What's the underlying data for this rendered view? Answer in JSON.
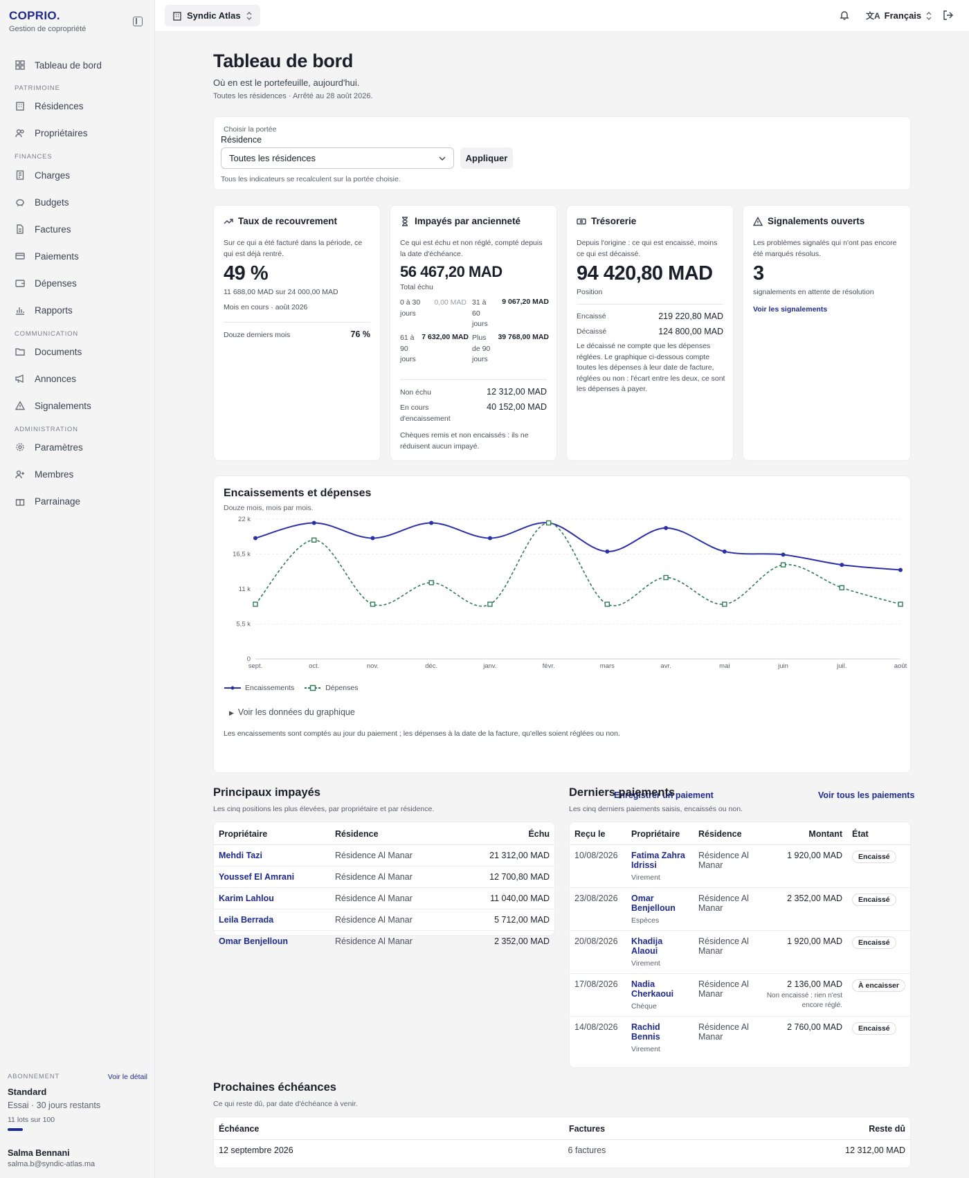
{
  "brand": {
    "logo": "COPRIO.",
    "subtitle": "Gestion de copropriété"
  },
  "sidebar": {
    "home": "Tableau de bord",
    "sections": [
      {
        "title": "PATRIMOINE",
        "items": [
          "Résidences",
          "Propriétaires"
        ]
      },
      {
        "title": "FINANCES",
        "items": [
          "Charges",
          "Budgets",
          "Factures",
          "Paiements",
          "Dépenses",
          "Rapports"
        ]
      },
      {
        "title": "COMMUNICATION",
        "items": [
          "Documents",
          "Annonces",
          "Signalements"
        ]
      },
      {
        "title": "ADMINISTRATION",
        "items": [
          "Paramètres",
          "Membres",
          "Parrainage"
        ]
      }
    ],
    "subscription": {
      "label": "ABONNEMENT",
      "link": "Voir le détail",
      "plan": "Standard",
      "trial": "Essai · 30 jours restants",
      "lots": "11 lots sur 100",
      "usage_fraction": 0.11
    },
    "user": {
      "name": "Salma Bennani",
      "email": "salma.b@syndic-atlas.ma"
    }
  },
  "topbar": {
    "org": "Syndic Atlas",
    "language": "Français"
  },
  "page": {
    "title": "Tableau de bord",
    "subtitle": "Où en est le portefeuille, aujourd'hui.",
    "meta": "Toutes les résidences · Arrêté au 28 août 2026."
  },
  "scope": {
    "label": "Choisir la portée",
    "field_label": "Résidence",
    "selected": "Toutes les résidences",
    "apply": "Appliquer",
    "hint": "Tous les indicateurs se recalculent sur la portée choisie."
  },
  "kpis": {
    "recovery": {
      "title": "Taux de recouvrement",
      "desc": "Sur ce qui a été facturé dans la période, ce qui est déjà rentré.",
      "value": "49 %",
      "detail": "11 688,00 MAD sur 24 000,00 MAD",
      "period": "Mois en cours · août 2026",
      "twelve_label": "Douze derniers mois",
      "twelve_value": "76 %"
    },
    "aging": {
      "title": "Impayés par ancienneté",
      "desc": "Ce qui est échu et non réglé, compté depuis la date d'échéance.",
      "value": "56 467,20 MAD",
      "value_label": "Total échu",
      "buckets": [
        {
          "label": "0 à 30 jours",
          "value": "0,00 MAD"
        },
        {
          "label": "31 à 60 jours",
          "value": "9 067,20 MAD"
        },
        {
          "label": "61 à 90 jours",
          "value": "7 632,00 MAD"
        },
        {
          "label": "Plus de 90 jours",
          "value": "39 768,00 MAD"
        }
      ],
      "not_due_label": "Non échu",
      "not_due_value": "12 312,00 MAD",
      "pending_label": "En cours d'encaissement",
      "pending_value": "40 152,00 MAD",
      "note": "Chèques remis et non encaissés : ils ne réduisent aucun impayé."
    },
    "treasury": {
      "title": "Trésorerie",
      "desc": "Depuis l'origine : ce qui est encaissé, moins ce qui est décaissé.",
      "value": "94 420,80 MAD",
      "value_label": "Position",
      "in_label": "Encaissé",
      "in_value": "219 220,80 MAD",
      "out_label": "Décaissé",
      "out_value": "124 800,00 MAD",
      "note": "Le décaissé ne compte que les dépenses réglées. Le graphique ci-dessous compte toutes les dépenses à leur date de facture, réglées ou non : l'écart entre les deux, ce sont les dépenses à payer."
    },
    "reports": {
      "title": "Signalements ouverts",
      "desc": "Les problèmes signalés qui n'ont pas encore été marqués résolus.",
      "value": "3",
      "value_label": "signalements en attente de résolution",
      "link": "Voir les signalements"
    }
  },
  "chart_section": {
    "title": "Encaissements et dépenses",
    "subtitle": "Douze mois, mois par mois.",
    "details": "Voir les données du graphique",
    "note": "Les encaissements sont comptés au jour du paiement ; les dépenses à la date de la facture, qu'elles soient réglées ou non."
  },
  "chart_data": {
    "type": "line",
    "categories": [
      "sept.",
      "oct.",
      "nov.",
      "déc.",
      "janv.",
      "févr.",
      "mars",
      "avr.",
      "mai",
      "juin",
      "juil.",
      "août"
    ],
    "series": [
      {
        "name": "Encaissements",
        "color": "#2b2fa8",
        "style": "solid",
        "values": [
          19000,
          21400,
          19000,
          21400,
          19000,
          21400,
          16900,
          20600,
          16900,
          16400,
          14800,
          14000
        ]
      },
      {
        "name": "Dépenses",
        "color": "#2f7a55",
        "style": "dashed",
        "values": [
          8600,
          18700,
          8600,
          12000,
          8600,
          21400,
          8600,
          12800,
          8600,
          14800,
          11200,
          8600
        ]
      }
    ],
    "y_ticks": [
      "0",
      "5,5 k",
      "11 k",
      "16,5 k",
      "22 k"
    ],
    "ylim": [
      0,
      22000
    ],
    "grid": true,
    "legend": "bottom-left"
  },
  "unpaid": {
    "title": "Principaux impayés",
    "subtitle": "Les cinq positions les plus élevées, par propriétaire et par résidence.",
    "link": "Enregistrer un paiement",
    "headers": [
      "Propriétaire",
      "Résidence",
      "Échu"
    ],
    "rows": [
      {
        "owner": "Mehdi Tazi",
        "residence": "Résidence Al Manar",
        "amount": "21 312,00 MAD"
      },
      {
        "owner": "Youssef El Amrani",
        "residence": "Résidence Al Manar",
        "amount": "12 700,80 MAD"
      },
      {
        "owner": "Karim Lahlou",
        "residence": "Résidence Al Manar",
        "amount": "11 040,00 MAD"
      },
      {
        "owner": "Leila Berrada",
        "residence": "Résidence Al Manar",
        "amount": "5 712,00 MAD"
      },
      {
        "owner": "Omar Benjelloun",
        "residence": "Résidence Al Manar",
        "amount": "2 352,00 MAD"
      }
    ]
  },
  "payments": {
    "title": "Derniers paiements",
    "subtitle": "Les cinq derniers paiements saisis, encaissés ou non.",
    "link": "Voir tous les paiements",
    "headers": [
      "Reçu le",
      "Propriétaire",
      "Résidence",
      "Montant",
      "État"
    ],
    "rows": [
      {
        "date": "10/08/2026",
        "owner": "Fatima Zahra Idrissi",
        "method": "Virement",
        "residence": "Résidence Al Manar",
        "amount": "1 920,00 MAD",
        "note": "",
        "status": "Encaissé"
      },
      {
        "date": "23/08/2026",
        "owner": "Omar Benjelloun",
        "method": "Espèces",
        "residence": "Résidence Al Manar",
        "amount": "2 352,00 MAD",
        "note": "",
        "status": "Encaissé"
      },
      {
        "date": "20/08/2026",
        "owner": "Khadija Alaoui",
        "method": "Virement",
        "residence": "Résidence Al Manar",
        "amount": "1 920,00 MAD",
        "note": "",
        "status": "Encaissé"
      },
      {
        "date": "17/08/2026",
        "owner": "Nadia Cherkaoui",
        "method": "Chèque",
        "residence": "Résidence Al Manar",
        "amount": "2 136,00 MAD",
        "note": "Non encaissé : rien n'est encore réglé.",
        "status": "À encaisser"
      },
      {
        "date": "14/08/2026",
        "owner": "Rachid Bennis",
        "method": "Virement",
        "residence": "Résidence Al Manar",
        "amount": "2 760,00 MAD",
        "note": "",
        "status": "Encaissé"
      }
    ]
  },
  "upcoming": {
    "title": "Prochaines échéances",
    "subtitle": "Ce qui reste dû, par date d'échéance à venir.",
    "headers": [
      "Échéance",
      "Factures",
      "Reste dû"
    ],
    "rows": [
      {
        "date": "12 septembre 2026",
        "invoices": "6 factures",
        "due": "12 312,00 MAD"
      }
    ]
  }
}
